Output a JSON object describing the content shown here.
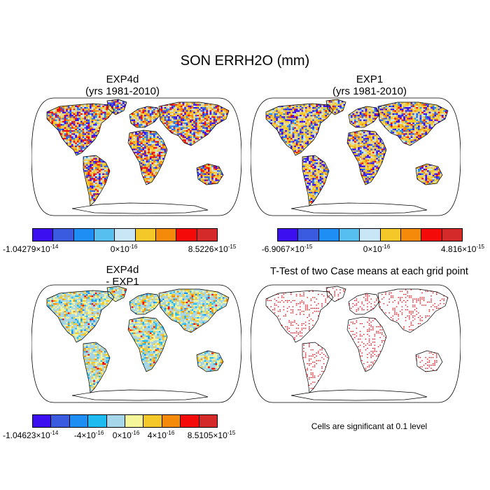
{
  "title": "SON ERRH2O (mm)",
  "panels": [
    {
      "id": "exp4d",
      "title_line1": "EXP4d",
      "title_line2": "(yrs 1981-2010)",
      "palette": [
        "#3b0ff0",
        "#3a5ae0",
        "#1e8ef5",
        "#56bff0",
        "#c8e6f5",
        "#f5c829",
        "#f58a0a",
        "#f50a0a",
        "#d42a2a"
      ],
      "colorbar_labels": [
        {
          "mantissa": "-1.04279",
          "exp": "-14"
        },
        {
          "mantissa": "0",
          "exp": "-16"
        },
        {
          "mantissa": "8.5226",
          "exp": "-15"
        }
      ]
    },
    {
      "id": "exp1",
      "title_line1": "EXP1",
      "title_line2": "(yrs 1981-2010)",
      "palette": [
        "#3b0ff0",
        "#3a5ae0",
        "#1e8ef5",
        "#56bff0",
        "#c8e6f5",
        "#f5c829",
        "#f58a0a",
        "#f50a0a",
        "#d42a2a"
      ],
      "colorbar_labels": [
        {
          "mantissa": "-6.9067",
          "exp": "-15"
        },
        {
          "mantissa": "0",
          "exp": "-16"
        },
        {
          "mantissa": "4.816",
          "exp": "-15"
        }
      ]
    },
    {
      "id": "diff",
      "title_line1": "EXP4d",
      "title_line2": "- EXP1",
      "palette": [
        "#3b0ff0",
        "#3a5ae0",
        "#1e8ef5",
        "#1ebbf0",
        "#a6d6ea",
        "#f5f59a",
        "#f5c829",
        "#f58a0a",
        "#f50a0a",
        "#d42a2a"
      ],
      "colorbar_labels": [
        {
          "mantissa": "-1.04623",
          "exp": "-14"
        },
        {
          "mantissa": "-4",
          "exp": "-16"
        },
        {
          "mantissa": "0",
          "exp": "-16"
        },
        {
          "mantissa": "4",
          "exp": "-16"
        },
        {
          "mantissa": "8.5105",
          "exp": "-15"
        }
      ]
    },
    {
      "id": "ttest",
      "title_line1": "T-Test of two Case means at each grid point",
      "note": "Cells are significant at 0.1 level",
      "color": "#e0000a"
    }
  ]
}
